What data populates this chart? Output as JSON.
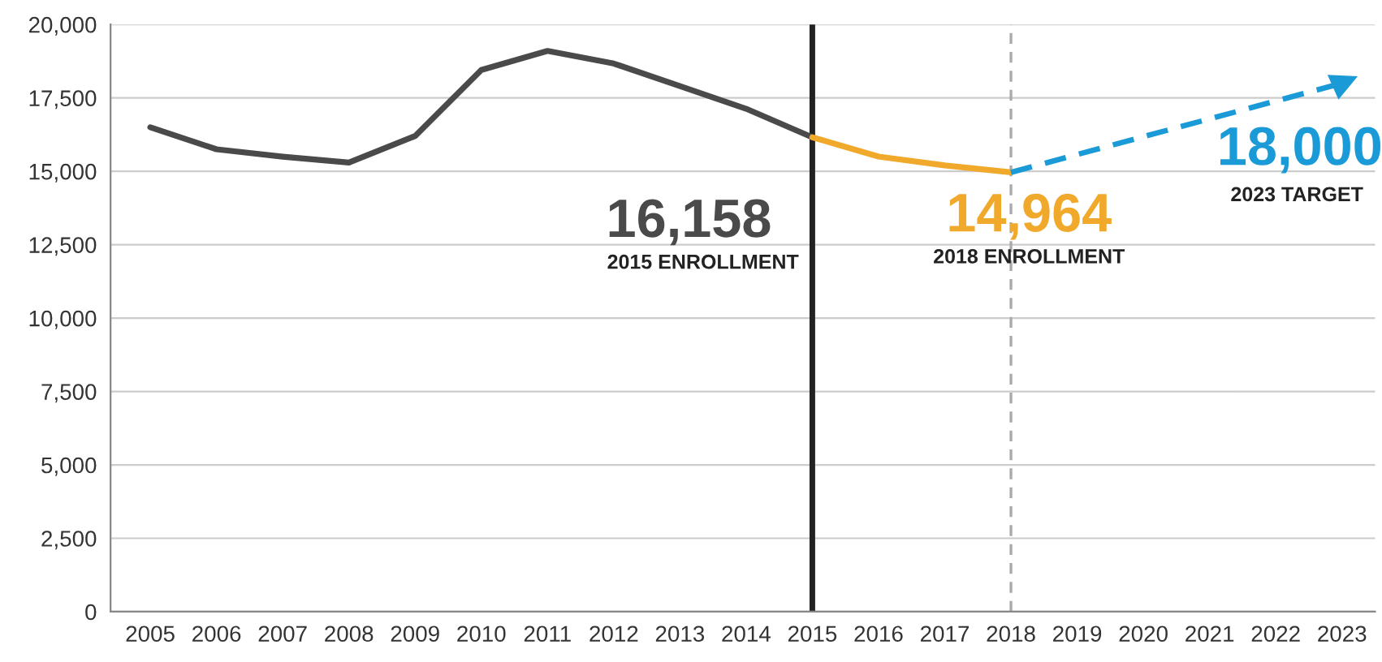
{
  "chart_data": {
    "type": "line",
    "categories": [
      "2005",
      "2006",
      "2007",
      "2008",
      "2009",
      "2010",
      "2011",
      "2012",
      "2013",
      "2014",
      "2015",
      "2016",
      "2017",
      "2018",
      "2019",
      "2020",
      "2021",
      "2022",
      "2023"
    ],
    "series": [
      {
        "color": "#4a4a4a",
        "line_style": "solid",
        "values": [
          16500,
          15750,
          15500,
          15300,
          16200,
          18450,
          19100,
          18670,
          17900,
          17130,
          16158,
          null,
          null,
          null,
          null,
          null,
          null,
          null,
          null
        ],
        "value_labels": [
          null,
          null,
          null,
          null,
          null,
          null,
          null,
          null,
          null,
          null,
          "16,158",
          null,
          null,
          null,
          null,
          null,
          null,
          null,
          null
        ]
      },
      {
        "color": "#f0a92b",
        "line_style": "solid",
        "values": [
          null,
          null,
          null,
          null,
          null,
          null,
          null,
          null,
          null,
          null,
          16158,
          15500,
          15200,
          14964,
          null,
          null,
          null,
          null,
          null
        ],
        "value_labels": [
          null,
          null,
          null,
          null,
          null,
          null,
          null,
          null,
          null,
          null,
          null,
          null,
          null,
          "14,964",
          null,
          null,
          null,
          null,
          null
        ]
      },
      {
        "color": "#1a9ad6",
        "line_style": "dashed",
        "values": [
          null,
          null,
          null,
          null,
          null,
          null,
          null,
          null,
          null,
          null,
          null,
          null,
          null,
          14964,
          null,
          null,
          null,
          null,
          18000
        ],
        "value_labels": [
          null,
          null,
          null,
          null,
          null,
          null,
          null,
          null,
          null,
          null,
          null,
          null,
          null,
          null,
          null,
          null,
          null,
          null,
          "18,000"
        ]
      }
    ],
    "ylim": [
      0,
      20000
    ],
    "yticks": [
      0,
      {
        "value": 2500,
        "label": "2,500"
      },
      {
        "value": 5000,
        "label": "5,000"
      },
      {
        "value": 7500,
        "label": "7,500"
      },
      {
        "value": 10000,
        "label": "10,000"
      },
      {
        "value": 12500,
        "label": "12,500"
      },
      {
        "value": 15000,
        "label": "15,000"
      },
      {
        "value": 17500,
        "label": "17,500"
      },
      {
        "value": 20000,
        "label": "20,000"
      }
    ],
    "grid": "y",
    "ref_lines": [
      {
        "axis": "x",
        "value": "2015",
        "color": "#222222",
        "line_style": "solid"
      },
      {
        "axis": "x",
        "value": "2018",
        "color": "#aaaaaa",
        "line_style": "dashed"
      }
    ],
    "annotations": [
      "2015 ENROLLMENT",
      "2018 ENROLLMENT",
      "2023 TARGET"
    ]
  }
}
